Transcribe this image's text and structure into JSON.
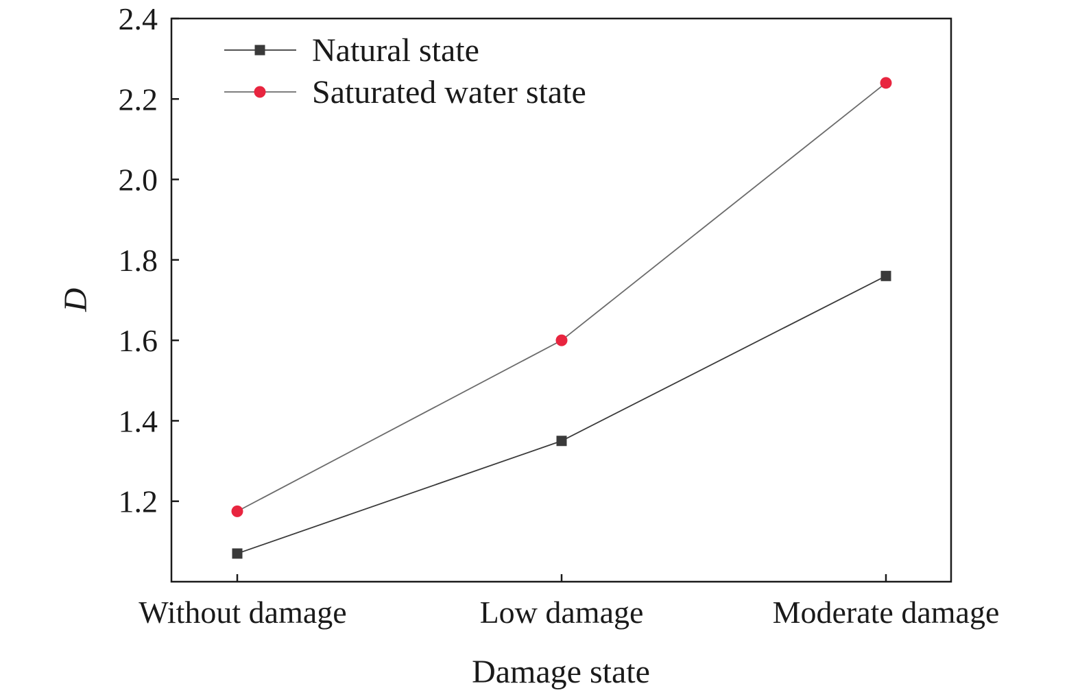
{
  "chart_data": {
    "type": "line",
    "title": "",
    "xlabel": "Damage state",
    "ylabel": "D",
    "categories": [
      "Without damage",
      "Low damage",
      "Moderate damage"
    ],
    "ylim": [
      1.0,
      2.4
    ],
    "yticks": [
      "1.2",
      "1.4",
      "1.6",
      "1.8",
      "2.0",
      "2.2",
      "2.4"
    ],
    "grid": false,
    "legend_position": "top-left",
    "series": [
      {
        "name": "Natural state",
        "marker": "square",
        "line_color": "#3a3a3a",
        "marker_color": "#3a3a3a",
        "values": [
          1.07,
          1.35,
          1.76
        ]
      },
      {
        "name": "Saturated water state",
        "marker": "circle",
        "line_color": "#6b6b6b",
        "marker_color": "#e8253f",
        "values": [
          1.175,
          1.6,
          2.24
        ]
      }
    ]
  }
}
